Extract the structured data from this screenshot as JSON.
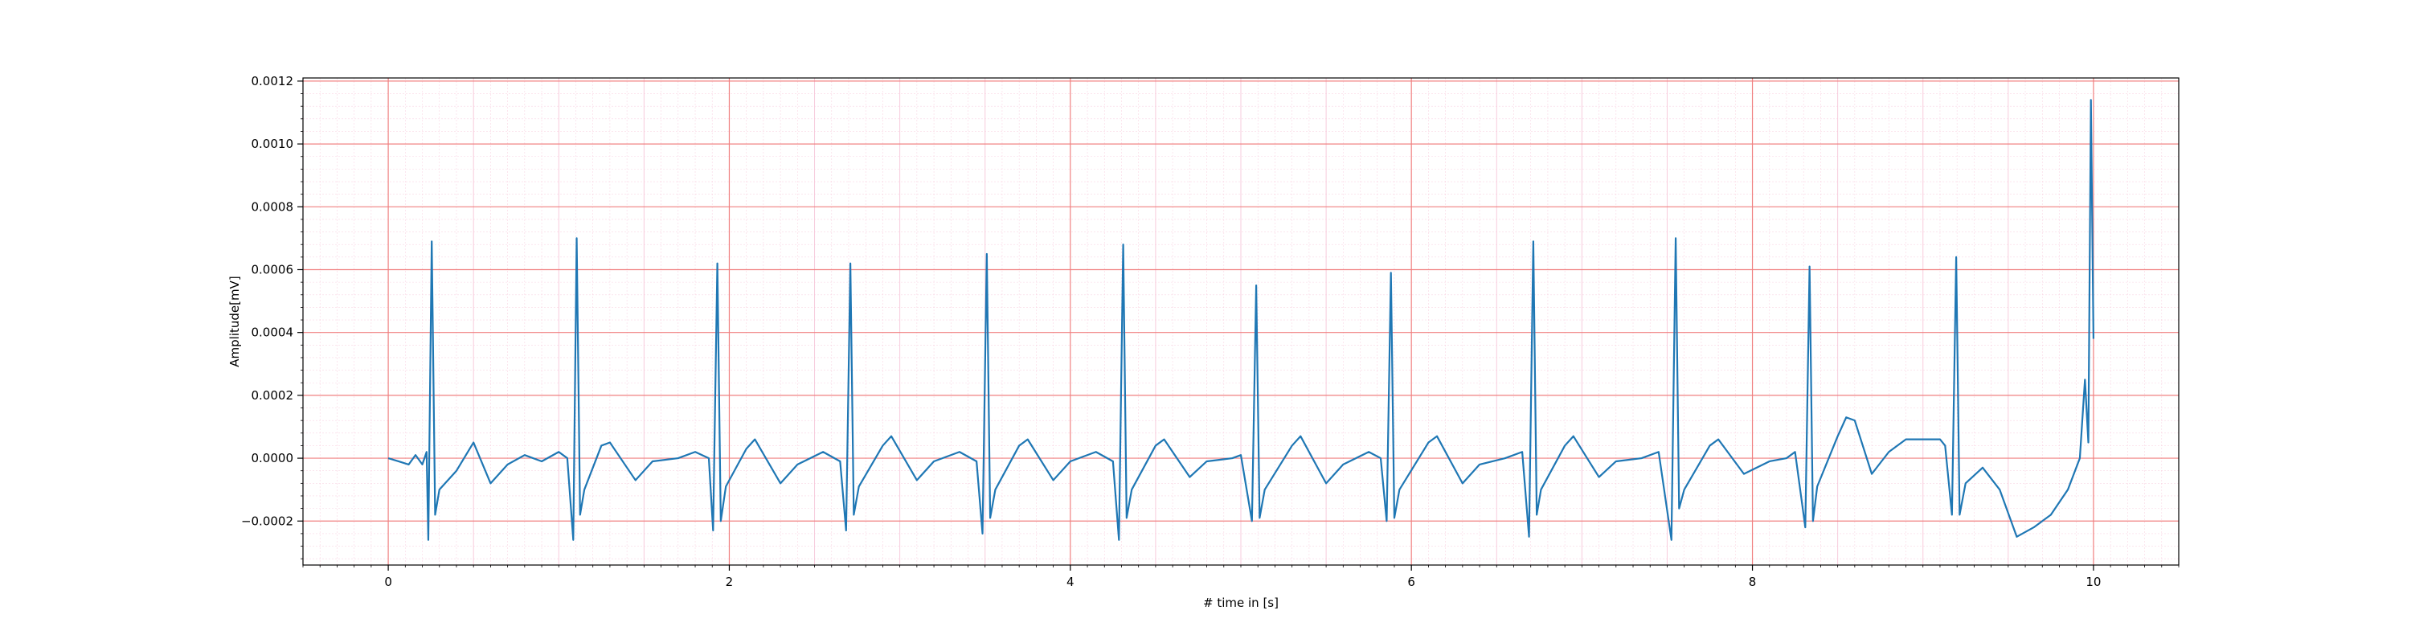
{
  "chart_data": {
    "type": "line",
    "title": "",
    "xlabel": "# time in [s]",
    "ylabel": "Amplitude[mV]",
    "xlim": [
      -0.5,
      10.5
    ],
    "ylim": [
      -0.00034,
      0.00121
    ],
    "x_ticks": [
      0,
      2,
      4,
      6,
      8,
      10
    ],
    "x_tick_labels": [
      "0",
      "2",
      "4",
      "6",
      "8",
      "10"
    ],
    "y_ticks": [
      -0.0002,
      0.0,
      0.0002,
      0.0004,
      0.0006,
      0.0008,
      0.001,
      0.0012
    ],
    "y_tick_labels": [
      "−0.0002",
      "0.0000",
      "0.0002",
      "0.0004",
      "0.0006",
      "0.0008",
      "0.0010",
      "0.0012"
    ],
    "grid": "major and minor (ECG paper style)",
    "colors": {
      "line": "#1f77b4",
      "major_grid": "#f08080",
      "minor_grid": "#f7c6d9"
    },
    "series": [
      {
        "values": [
          [
            0.0,
            0.0
          ],
          [
            0.06,
            -1e-05
          ],
          [
            0.12,
            -2e-05
          ],
          [
            0.16,
            1e-05
          ],
          [
            0.2,
            -2e-05
          ],
          [
            0.225,
            2e-05
          ],
          [
            0.235,
            -0.00026
          ],
          [
            0.255,
            0.00069
          ],
          [
            0.275,
            -0.00018
          ],
          [
            0.3,
            -0.0001
          ],
          [
            0.4,
            -4e-05
          ],
          [
            0.5,
            5e-05
          ],
          [
            0.6,
            -8e-05
          ],
          [
            0.7,
            -2e-05
          ],
          [
            0.8,
            1e-05
          ],
          [
            0.9,
            -1e-05
          ],
          [
            1.0,
            2e-05
          ],
          [
            1.05,
            0.0
          ],
          [
            1.085,
            -0.00026
          ],
          [
            1.105,
            0.0007
          ],
          [
            1.125,
            -0.00018
          ],
          [
            1.15,
            -0.0001
          ],
          [
            1.25,
            4e-05
          ],
          [
            1.3,
            5e-05
          ],
          [
            1.45,
            -7e-05
          ],
          [
            1.55,
            -1e-05
          ],
          [
            1.7,
            0.0
          ],
          [
            1.8,
            2e-05
          ],
          [
            1.88,
            0.0
          ],
          [
            1.905,
            -0.00023
          ],
          [
            1.93,
            0.00062
          ],
          [
            1.95,
            -0.0002
          ],
          [
            1.98,
            -9e-05
          ],
          [
            2.1,
            3e-05
          ],
          [
            2.15,
            6e-05
          ],
          [
            2.3,
            -8e-05
          ],
          [
            2.4,
            -2e-05
          ],
          [
            2.55,
            2e-05
          ],
          [
            2.65,
            -1e-05
          ],
          [
            2.685,
            -0.00023
          ],
          [
            2.71,
            0.00062
          ],
          [
            2.73,
            -0.00018
          ],
          [
            2.76,
            -9e-05
          ],
          [
            2.9,
            4e-05
          ],
          [
            2.95,
            7e-05
          ],
          [
            3.1,
            -7e-05
          ],
          [
            3.2,
            -1e-05
          ],
          [
            3.35,
            2e-05
          ],
          [
            3.45,
            -1e-05
          ],
          [
            3.485,
            -0.00024
          ],
          [
            3.51,
            0.00065
          ],
          [
            3.53,
            -0.00019
          ],
          [
            3.56,
            -0.0001
          ],
          [
            3.7,
            4e-05
          ],
          [
            3.75,
            6e-05
          ],
          [
            3.9,
            -7e-05
          ],
          [
            4.0,
            -1e-05
          ],
          [
            4.15,
            2e-05
          ],
          [
            4.25,
            -1e-05
          ],
          [
            4.285,
            -0.00026
          ],
          [
            4.31,
            0.00068
          ],
          [
            4.33,
            -0.00019
          ],
          [
            4.36,
            -0.0001
          ],
          [
            4.5,
            4e-05
          ],
          [
            4.55,
            6e-05
          ],
          [
            4.7,
            -6e-05
          ],
          [
            4.8,
            -1e-05
          ],
          [
            4.95,
            0.0
          ],
          [
            5.0,
            1e-05
          ],
          [
            5.065,
            -0.0002
          ],
          [
            5.09,
            0.00055
          ],
          [
            5.11,
            -0.00019
          ],
          [
            5.14,
            -0.0001
          ],
          [
            5.3,
            4e-05
          ],
          [
            5.35,
            7e-05
          ],
          [
            5.5,
            -8e-05
          ],
          [
            5.6,
            -2e-05
          ],
          [
            5.75,
            2e-05
          ],
          [
            5.82,
            0.0
          ],
          [
            5.855,
            -0.0002
          ],
          [
            5.88,
            0.00059
          ],
          [
            5.9,
            -0.00019
          ],
          [
            5.93,
            -0.0001
          ],
          [
            6.1,
            5e-05
          ],
          [
            6.15,
            7e-05
          ],
          [
            6.3,
            -8e-05
          ],
          [
            6.4,
            -2e-05
          ],
          [
            6.55,
            0.0
          ],
          [
            6.65,
            2e-05
          ],
          [
            6.69,
            -0.00025
          ],
          [
            6.715,
            0.00069
          ],
          [
            6.735,
            -0.00018
          ],
          [
            6.76,
            -0.0001
          ],
          [
            6.9,
            4e-05
          ],
          [
            6.95,
            7e-05
          ],
          [
            7.1,
            -6e-05
          ],
          [
            7.2,
            -1e-05
          ],
          [
            7.35,
            0.0
          ],
          [
            7.45,
            2e-05
          ],
          [
            7.525,
            -0.00026
          ],
          [
            7.55,
            0.0007
          ],
          [
            7.57,
            -0.00016
          ],
          [
            7.6,
            -0.0001
          ],
          [
            7.75,
            4e-05
          ],
          [
            7.8,
            6e-05
          ],
          [
            7.95,
            -5e-05
          ],
          [
            8.1,
            -1e-05
          ],
          [
            8.2,
            0.0
          ],
          [
            8.25,
            2e-05
          ],
          [
            8.31,
            -0.00022
          ],
          [
            8.335,
            0.00061
          ],
          [
            8.355,
            -0.0002
          ],
          [
            8.38,
            -9e-05
          ],
          [
            8.5,
            7e-05
          ],
          [
            8.55,
            0.00013
          ],
          [
            8.6,
            0.00012
          ],
          [
            8.7,
            -5e-05
          ],
          [
            8.8,
            2e-05
          ],
          [
            8.9,
            6e-05
          ],
          [
            9.0,
            6e-05
          ],
          [
            9.1,
            6e-05
          ],
          [
            9.13,
            4e-05
          ],
          [
            9.17,
            -0.00018
          ],
          [
            9.195,
            0.00064
          ],
          [
            9.215,
            -0.00018
          ],
          [
            9.25,
            -8e-05
          ],
          [
            9.35,
            -3e-05
          ],
          [
            9.45,
            -0.0001
          ],
          [
            9.55,
            -0.00025
          ],
          [
            9.65,
            -0.00022
          ],
          [
            9.75,
            -0.00018
          ],
          [
            9.85,
            -0.0001
          ],
          [
            9.92,
            0.0
          ],
          [
            9.95,
            0.00025
          ],
          [
            9.97,
            5e-05
          ],
          [
            9.985,
            0.00114
          ],
          [
            10.0,
            0.00038
          ]
        ]
      }
    ]
  }
}
